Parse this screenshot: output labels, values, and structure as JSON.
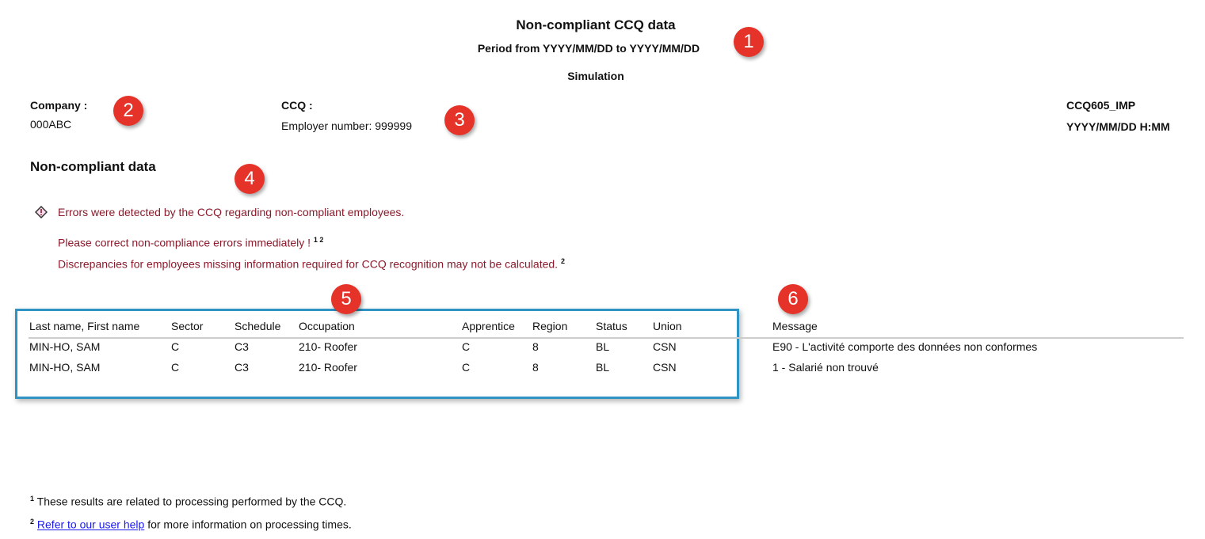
{
  "header": {
    "title": "Non-compliant CCQ data",
    "period": "Period from YYYY/MM/DD to YYYY/MM/DD",
    "mode": "Simulation"
  },
  "company": {
    "label": "Company :",
    "value": "000ABC"
  },
  "ccq": {
    "label": "CCQ :",
    "employer": "Employer number: 999999"
  },
  "report": {
    "code": "CCQ605_IMP",
    "datetime": "YYYY/MM/DD H:MM"
  },
  "section_title": "Non-compliant data",
  "alerts": {
    "main": "Errors were detected by the CCQ regarding non-compliant employees.",
    "line1": "Please correct non-compliance errors immediately !",
    "line1_sup": "1 2",
    "line2": "Discrepancies for employees missing information required for CCQ recognition may not be calculated.",
    "line2_sup": "2"
  },
  "table": {
    "headers": [
      "Last name, First name",
      "Sector",
      "Schedule",
      "Occupation",
      "Apprentice",
      "Region",
      "Status",
      "Union",
      "Message"
    ],
    "rows": [
      [
        "MIN-HO, SAM",
        "C",
        "C3",
        "210- Roofer",
        "C",
        "8",
        "BL",
        "CSN",
        "E90 - L'activité comporte des données non conformes"
      ],
      [
        "MIN-HO, SAM",
        "C",
        "C3",
        "210- Roofer",
        "C",
        "8",
        "BL",
        "CSN",
        "1 - Salarié non trouvé"
      ]
    ]
  },
  "footnotes": {
    "f1_mark": "1",
    "f1": "These results are related to processing performed by the CCQ.",
    "f2_mark": "2",
    "f2_link": "Refer to our user help",
    "f2_rest": " for more information on processing times."
  },
  "badges": [
    "1",
    "2",
    "3",
    "4",
    "5",
    "6"
  ],
  "colors": {
    "error_text": "#8b1a2b",
    "badge": "#e5332a",
    "highlight_box": "#2f93c4"
  }
}
